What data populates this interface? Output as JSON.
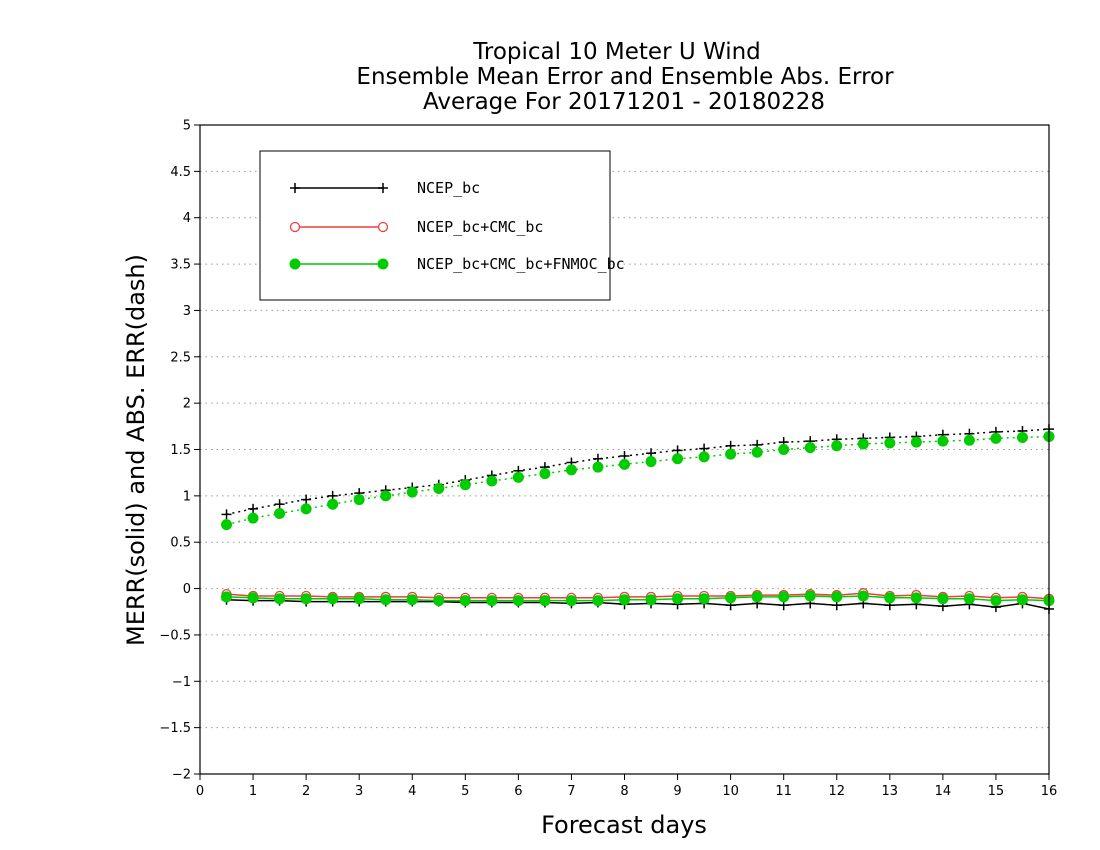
{
  "chart_data": {
    "type": "line",
    "title_lines": [
      "Tropical 10 Meter U Wind",
      "Ensemble Mean Error and Ensemble Abs. Error",
      "Average For 20171201 - 20180228"
    ],
    "xlabel": "Forecast days",
    "ylabel": "MERR(solid) and ABS. ERR(dash)",
    "xlim": [
      0,
      16
    ],
    "ylim": [
      -2,
      5
    ],
    "x_ticks": [
      "0",
      "1",
      "2",
      "3",
      "4",
      "5",
      "6",
      "7",
      "8",
      "9",
      "10",
      "11",
      "12",
      "13",
      "14",
      "15",
      "16"
    ],
    "y_ticks": [
      "−2",
      "−1.5",
      "−1",
      "−0.5",
      "0",
      "0.5",
      "1",
      "1.5",
      "2",
      "2.5",
      "3",
      "3.5",
      "4",
      "4.5",
      "5"
    ],
    "grid": true,
    "legend_position": "top-left",
    "x": [
      0.5,
      1,
      1.5,
      2,
      2.5,
      3,
      3.5,
      4,
      4.5,
      5,
      5.5,
      6,
      6.5,
      7,
      7.5,
      8,
      8.5,
      9,
      9.5,
      10,
      10.5,
      11,
      11.5,
      12,
      12.5,
      13,
      13.5,
      14,
      14.5,
      15,
      15.5,
      16
    ],
    "series": [
      {
        "name": "NCEP_bc",
        "color": "#000000",
        "marker": "plus",
        "merr": [
          -0.12,
          -0.13,
          -0.13,
          -0.14,
          -0.14,
          -0.14,
          -0.14,
          -0.14,
          -0.14,
          -0.15,
          -0.15,
          -0.15,
          -0.15,
          -0.16,
          -0.15,
          -0.17,
          -0.16,
          -0.17,
          -0.16,
          -0.18,
          -0.16,
          -0.18,
          -0.16,
          -0.18,
          -0.16,
          -0.18,
          -0.17,
          -0.19,
          -0.17,
          -0.2,
          -0.16,
          -0.22
        ],
        "abs_err": [
          0.8,
          0.86,
          0.91,
          0.96,
          1.0,
          1.03,
          1.06,
          1.09,
          1.12,
          1.17,
          1.22,
          1.27,
          1.31,
          1.36,
          1.4,
          1.43,
          1.46,
          1.49,
          1.51,
          1.54,
          1.55,
          1.58,
          1.59,
          1.61,
          1.62,
          1.63,
          1.64,
          1.66,
          1.67,
          1.69,
          1.7,
          1.72
        ]
      },
      {
        "name": "NCEP_bc+CMC_bc",
        "color": "#e8413c",
        "marker": "open-circle",
        "merr": [
          -0.06,
          -0.08,
          -0.08,
          -0.08,
          -0.09,
          -0.09,
          -0.09,
          -0.09,
          -0.1,
          -0.1,
          -0.1,
          -0.1,
          -0.1,
          -0.1,
          -0.1,
          -0.09,
          -0.09,
          -0.08,
          -0.08,
          -0.08,
          -0.07,
          -0.07,
          -0.06,
          -0.07,
          -0.05,
          -0.08,
          -0.07,
          -0.09,
          -0.08,
          -0.1,
          -0.09,
          -0.11
        ]
      },
      {
        "name": "NCEP_bc+CMC_bc+FNMOC_bc",
        "color": "#00cc00",
        "marker": "filled-circle",
        "merr": [
          -0.09,
          -0.1,
          -0.11,
          -0.11,
          -0.11,
          -0.11,
          -0.12,
          -0.12,
          -0.13,
          -0.13,
          -0.13,
          -0.13,
          -0.13,
          -0.13,
          -0.13,
          -0.12,
          -0.12,
          -0.11,
          -0.11,
          -0.1,
          -0.09,
          -0.09,
          -0.08,
          -0.09,
          -0.08,
          -0.1,
          -0.1,
          -0.11,
          -0.11,
          -0.13,
          -0.12,
          -0.13
        ],
        "abs_err": [
          0.69,
          0.76,
          0.81,
          0.86,
          0.91,
          0.96,
          1.0,
          1.04,
          1.08,
          1.12,
          1.16,
          1.2,
          1.24,
          1.28,
          1.31,
          1.34,
          1.37,
          1.4,
          1.42,
          1.45,
          1.47,
          1.5,
          1.52,
          1.54,
          1.56,
          1.57,
          1.58,
          1.59,
          1.6,
          1.62,
          1.63,
          1.64
        ]
      }
    ]
  }
}
